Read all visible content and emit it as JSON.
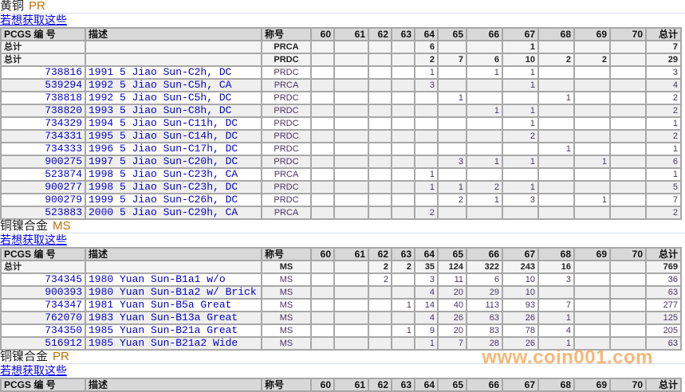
{
  "columns": {
    "id": "PCGS 编 号",
    "desc": "描述",
    "grade": "称号",
    "grades": [
      "60",
      "61",
      "62",
      "63",
      "64",
      "65",
      "66",
      "67",
      "68",
      "69",
      "70"
    ],
    "total": "总计"
  },
  "total_label": "总计",
  "link_text": "若想获取这些",
  "watermark": "www.coin001.com",
  "sections": [
    {
      "metal": "黄铜",
      "grade": "PR",
      "totals": [
        {
          "grade": "PRCA",
          "counts": [
            "",
            "",
            "",
            "",
            "6",
            "",
            "",
            "1",
            "",
            "",
            ""
          ],
          "total": "7"
        },
        {
          "grade": "PRDC",
          "counts": [
            "",
            "",
            "",
            "",
            "2",
            "7",
            "6",
            "10",
            "2",
            "2",
            ""
          ],
          "total": "29"
        }
      ],
      "rows": [
        {
          "id": "738816",
          "desc": "1991 5 Jiao Sun-C2h, DC",
          "grade": "PRDC",
          "counts": [
            "",
            "",
            "",
            "",
            "1",
            "",
            "1",
            "1",
            "",
            "",
            ""
          ],
          "total": "3"
        },
        {
          "id": "539294",
          "desc": "1992 5 Jiao Sun-C5h, CA",
          "grade": "PRCA",
          "counts": [
            "",
            "",
            "",
            "",
            "3",
            "",
            "",
            "1",
            "",
            "",
            ""
          ],
          "total": "4"
        },
        {
          "id": "738818",
          "desc": "1992 5 Jiao Sun-C5h, DC",
          "grade": "PRDC",
          "counts": [
            "",
            "",
            "",
            "",
            "",
            "1",
            "",
            "",
            "1",
            "",
            ""
          ],
          "total": "2"
        },
        {
          "id": "738820",
          "desc": "1993 5 Jiao Sun-C8h, DC",
          "grade": "PRDC",
          "counts": [
            "",
            "",
            "",
            "",
            "",
            "",
            "1",
            "1",
            "",
            "",
            ""
          ],
          "total": "2"
        },
        {
          "id": "734329",
          "desc": "1994 5 Jiao Sun-C11h, DC",
          "grade": "PRDC",
          "counts": [
            "",
            "",
            "",
            "",
            "",
            "",
            "",
            "1",
            "",
            "",
            ""
          ],
          "total": "1"
        },
        {
          "id": "734331",
          "desc": "1995 5 Jiao Sun-C14h, DC",
          "grade": "PRDC",
          "counts": [
            "",
            "",
            "",
            "",
            "",
            "",
            "",
            "2",
            "",
            "",
            ""
          ],
          "total": "2"
        },
        {
          "id": "734333",
          "desc": "1996 5 Jiao Sun-C17h, DC",
          "grade": "PRDC",
          "counts": [
            "",
            "",
            "",
            "",
            "",
            "",
            "",
            "",
            "1",
            "",
            ""
          ],
          "total": "1"
        },
        {
          "id": "900275",
          "desc": "1997 5 Jiao Sun-C20h, DC",
          "grade": "PRDC",
          "counts": [
            "",
            "",
            "",
            "",
            "",
            "3",
            "1",
            "1",
            "",
            "1",
            ""
          ],
          "total": "6"
        },
        {
          "id": "523874",
          "desc": "1998 5 Jiao Sun-C23h, CA",
          "grade": "PRCA",
          "counts": [
            "",
            "",
            "",
            "",
            "1",
            "",
            "",
            "",
            "",
            "",
            ""
          ],
          "total": "1"
        },
        {
          "id": "900277",
          "desc": "1998 5 Jiao Sun-C23h, DC",
          "grade": "PRDC",
          "counts": [
            "",
            "",
            "",
            "",
            "1",
            "1",
            "2",
            "1",
            "",
            "",
            ""
          ],
          "total": "5"
        },
        {
          "id": "900279",
          "desc": "1999 5 Jiao Sun-C26h, DC",
          "grade": "PRDC",
          "counts": [
            "",
            "",
            "",
            "",
            "",
            "2",
            "1",
            "3",
            "",
            "1",
            ""
          ],
          "total": "7"
        },
        {
          "id": "523883",
          "desc": "2000 5 Jiao Sun-C29h, CA",
          "grade": "PRCA",
          "counts": [
            "",
            "",
            "",
            "",
            "2",
            "",
            "",
            "",
            "",
            "",
            ""
          ],
          "total": "2"
        }
      ]
    },
    {
      "metal": "铜镍合金",
      "grade": "MS",
      "totals": [
        {
          "grade": "MS",
          "counts": [
            "",
            "",
            "2",
            "2",
            "35",
            "124",
            "322",
            "243",
            "16",
            "",
            ""
          ],
          "total": "769"
        }
      ],
      "rows": [
        {
          "id": "734345",
          "desc": "1980 Yuan Sun-B1a1 w/o",
          "grade": "MS",
          "counts": [
            "",
            "",
            "2",
            "",
            "3",
            "11",
            "6",
            "10",
            "3",
            "",
            ""
          ],
          "total": "36"
        },
        {
          "id": "900393",
          "desc": "1980 Yuan Sun-B1a2 w/ Brick",
          "grade": "MS",
          "counts": [
            "",
            "",
            "",
            "",
            "4",
            "20",
            "29",
            "10",
            "",
            "",
            ""
          ],
          "total": "63"
        },
        {
          "id": "734347",
          "desc": "1981 Yuan Sun-B5a Great",
          "grade": "MS",
          "counts": [
            "",
            "",
            "",
            "1",
            "14",
            "40",
            "113",
            "93",
            "7",
            "",
            ""
          ],
          "total": "277"
        },
        {
          "id": "762070",
          "desc": "1983 Yuan Sun-B13a Great",
          "grade": "MS",
          "counts": [
            "",
            "",
            "",
            "",
            "4",
            "26",
            "63",
            "26",
            "1",
            "",
            ""
          ],
          "total": "125"
        },
        {
          "id": "734350",
          "desc": "1985 Yuan Sun-B21a Great",
          "grade": "MS",
          "counts": [
            "",
            "",
            "",
            "1",
            "9",
            "20",
            "83",
            "78",
            "4",
            "",
            ""
          ],
          "total": "205"
        },
        {
          "id": "516912",
          "desc": "1985 Yuan Sun-B21a2 Wide",
          "grade": "MS",
          "counts": [
            "",
            "",
            "",
            "",
            "1",
            "7",
            "28",
            "26",
            "1",
            "",
            ""
          ],
          "total": "63"
        }
      ]
    },
    {
      "metal": "铜镍合金",
      "grade": "PR",
      "totals": [],
      "rows": []
    }
  ]
}
